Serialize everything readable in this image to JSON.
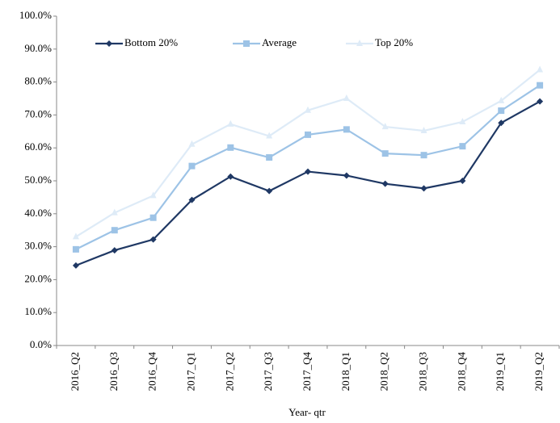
{
  "chart_data": {
    "type": "line",
    "x_label": "Year- qtr",
    "categories": [
      "2016_Q2",
      "2016_Q3",
      "2016_Q4",
      "2017_Q1",
      "2017_Q2",
      "2017_Q3",
      "2017_Q4",
      "2018_Q1",
      "2018_Q2",
      "2018_Q3",
      "2018_Q4",
      "2019_Q1",
      "2019_Q2"
    ],
    "series": [
      {
        "name": "Bottom 20%",
        "color": "#1f3864",
        "marker": "diamond",
        "values": [
          24.3,
          28.9,
          32.2,
          44.2,
          51.3,
          46.9,
          52.8,
          51.6,
          49.1,
          47.7,
          50.0,
          67.6,
          74.1
        ]
      },
      {
        "name": "Average",
        "color": "#9dc3e6",
        "marker": "square",
        "values": [
          29.2,
          35.0,
          38.8,
          54.5,
          60.1,
          57.1,
          64.0,
          65.6,
          58.3,
          57.8,
          60.5,
          71.3,
          79.0
        ]
      },
      {
        "name": "Top 20%",
        "color": "#deebf7",
        "marker": "triangle",
        "values": [
          33.0,
          40.3,
          45.5,
          61.1,
          67.2,
          63.6,
          71.4,
          75.0,
          66.4,
          65.2,
          67.9,
          74.3,
          83.7
        ]
      }
    ],
    "ylim": [
      0,
      100
    ],
    "yticks": [
      {
        "value": 0,
        "label": "0.0%"
      },
      {
        "value": 10,
        "label": "10.0%"
      },
      {
        "value": 20,
        "label": "20.0%"
      },
      {
        "value": 30,
        "label": "30.0%"
      },
      {
        "value": 40,
        "label": "40.0%"
      },
      {
        "value": 50,
        "label": "50.0%"
      },
      {
        "value": 60,
        "label": "60.0%"
      },
      {
        "value": 70,
        "label": "70.0%"
      },
      {
        "value": 80,
        "label": "80.0%"
      },
      {
        "value": 90,
        "label": "90.0%"
      },
      {
        "value": 100,
        "label": "100.0%"
      }
    ],
    "grid": false,
    "legend": "upper left"
  }
}
